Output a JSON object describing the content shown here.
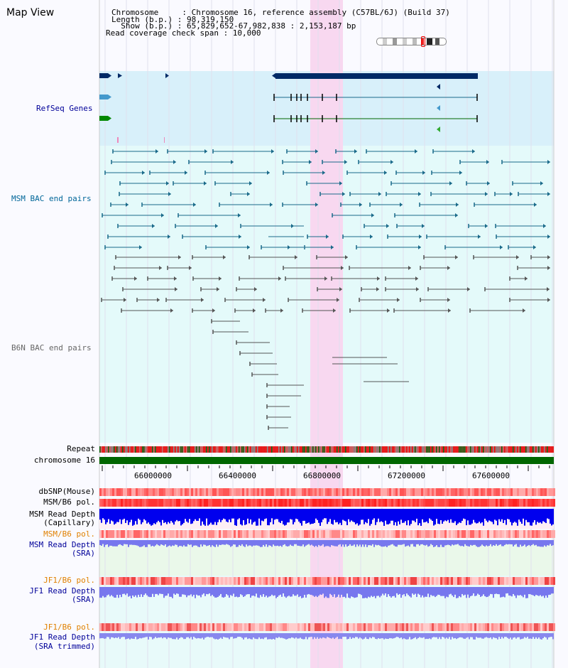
{
  "title": "Map View",
  "info": {
    "lines": [
      "Chromosome     : Chromosome 16, reference assembly (C57BL/6J) (Build 37)",
      "Length (b.p.) : 98,319,150",
      "  Show (b.p.) : 65,829,652-67,982,838 : 2,153,187 bp",
      "Read coverage check span : 10,000"
    ]
  },
  "tracks": {
    "refseq": "RefSeq Genes",
    "msm_bac": "MSM BAC end pairs",
    "b6n_bac": "B6N BAC end pairs",
    "repeat": "Repeat",
    "chromosome": "chromosome 16",
    "dbsnp": "dbSNP(Mouse)",
    "msm_b6_pol_1": "MSM/B6 pol.",
    "msm_depth_cap_1": "MSM Read Depth",
    "msm_depth_cap_2": "(Capillary)",
    "msm_b6_pol_2": "MSM/B6 pol.",
    "msm_depth_sra_1": "MSM Read Depth",
    "msm_depth_sra_2": "(SRA)",
    "jf1_b6_pol_1": "JF1/B6 pol.",
    "jf1_depth_sra_1": "JF1 Read Depth",
    "jf1_depth_sra_2": "(SRA)",
    "jf1_b6_pol_2": "JF1/B6 pol.",
    "jf1_depth_trim_1": "JF1 Read Depth",
    "jf1_depth_trim_2": "(SRA trimmed)"
  },
  "axis": {
    "ticks": [
      "66000000",
      "66400000",
      "66800000",
      "67200000",
      "67600000"
    ]
  },
  "colors": {
    "refseq_bg": "#d8f0fa",
    "bac_bg": "#e4fafa",
    "highlight": "#f8d8f0",
    "gene_dark": "#002a66",
    "msm_feature": "#1a6a8a",
    "b6n_feature": "#555555",
    "chromosome": "#006600",
    "snp": "#ff3333",
    "depth": "#0000ee"
  }
}
